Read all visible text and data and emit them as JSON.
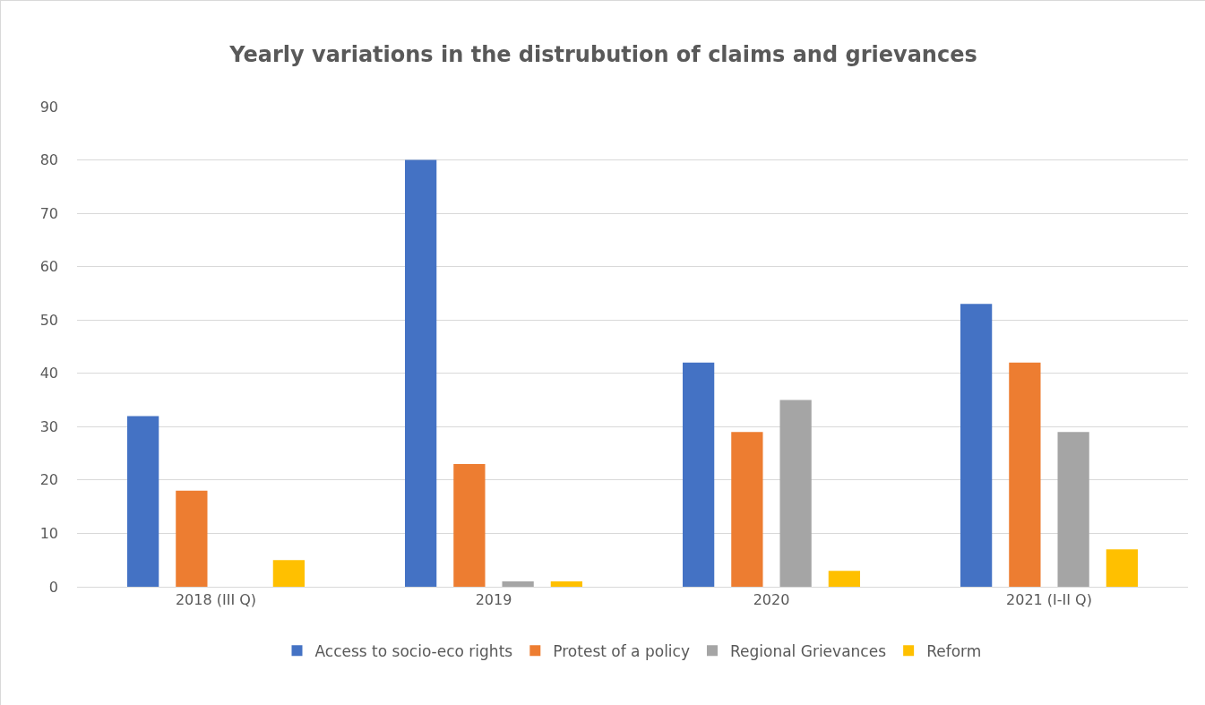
{
  "chart_data": {
    "type": "bar",
    "title": "Yearly variations in the distrubution of claims and grievances",
    "categories": [
      "2018 (III Q)",
      "2019",
      "2020",
      "2021 (I-II Q)"
    ],
    "series": [
      {
        "name": "Access to socio-eco rights",
        "color": "#4472c4",
        "values": [
          32,
          80,
          42,
          53
        ]
      },
      {
        "name": "Protest of a policy",
        "color": "#ed7d31",
        "values": [
          18,
          23,
          29,
          42
        ]
      },
      {
        "name": "Regional Grievances",
        "color": "#a5a5a5",
        "values": [
          0,
          1,
          35,
          29
        ]
      },
      {
        "name": "Reform",
        "color": "#ffc000",
        "values": [
          5,
          1,
          3,
          7
        ]
      }
    ],
    "ylim": [
      0,
      90
    ],
    "yticks": [
      0,
      10,
      20,
      30,
      40,
      50,
      60,
      70,
      80,
      90
    ],
    "grid": "y",
    "legend": "bottom"
  }
}
